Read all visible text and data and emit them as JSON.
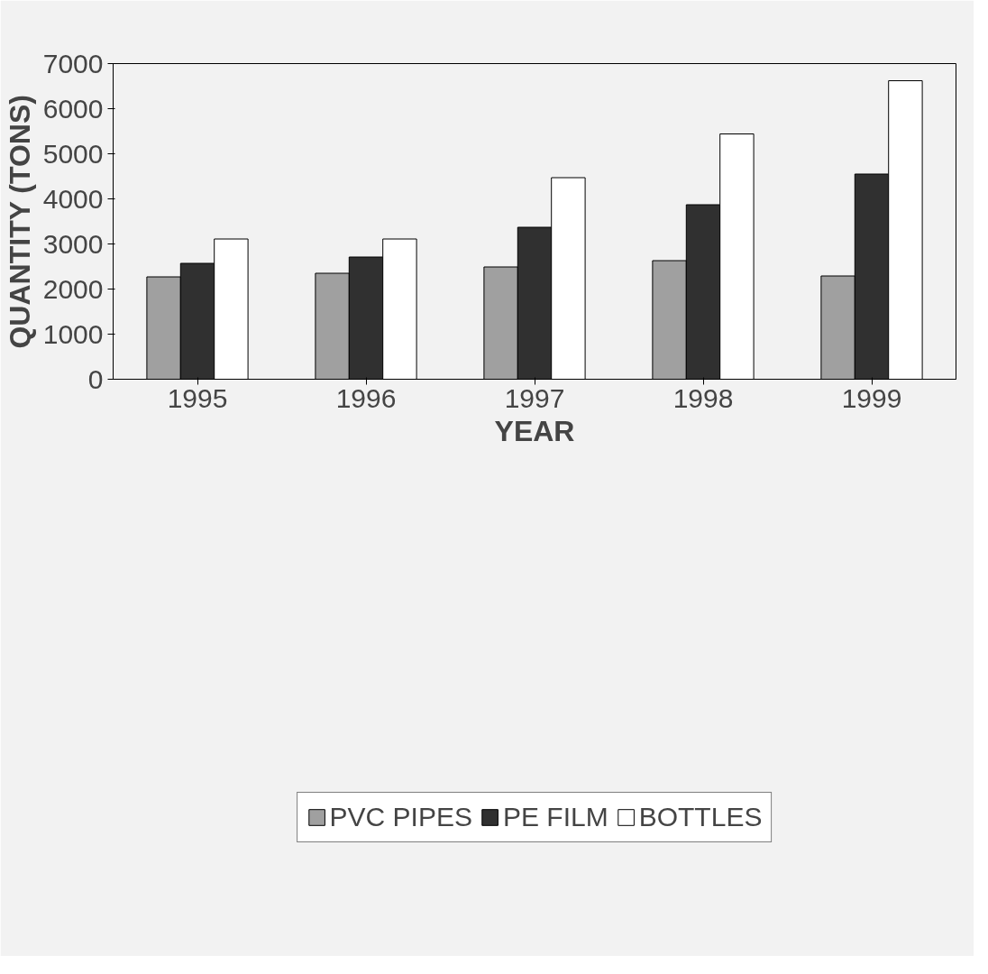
{
  "chart_data": {
    "type": "bar",
    "xlabel": "YEAR",
    "ylabel": "QUANTITY (TONS)",
    "categories": [
      "1995",
      "1996",
      "1997",
      "1998",
      "1999"
    ],
    "series": [
      {
        "name": "PVC PIPES",
        "color": "#a0a0a0",
        "values": [
          2270,
          2350,
          2490,
          2630,
          2290
        ]
      },
      {
        "name": "PE FILM",
        "color": "#303030",
        "values": [
          2570,
          2710,
          3370,
          3870,
          4550
        ]
      },
      {
        "name": "BOTTLES",
        "color": "#ffffff",
        "values": [
          3110,
          3110,
          4470,
          5440,
          6620
        ]
      }
    ],
    "ylim": [
      0,
      7000
    ],
    "yticks": [
      0,
      1000,
      2000,
      3000,
      4000,
      5000,
      6000,
      7000
    ],
    "grid": false,
    "legend": "bottom"
  }
}
